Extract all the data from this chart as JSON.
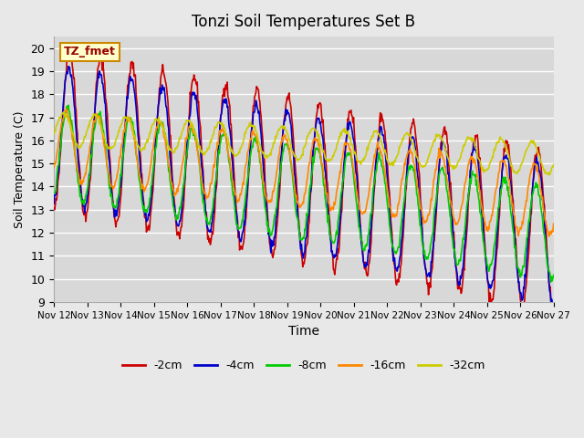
{
  "title": "Tonzi Soil Temperatures Set B",
  "xlabel": "Time",
  "ylabel": "Soil Temperature (C)",
  "ylim": [
    9.0,
    20.5
  ],
  "yticks": [
    9.0,
    10.0,
    11.0,
    12.0,
    13.0,
    14.0,
    15.0,
    16.0,
    17.0,
    18.0,
    19.0,
    20.0
  ],
  "xtick_labels": [
    "Nov 12",
    "Nov 13",
    "Nov 14",
    "Nov 15",
    "Nov 16",
    "Nov 17",
    "Nov 18",
    "Nov 19",
    "Nov 20",
    "Nov 21",
    "Nov 22",
    "Nov 23",
    "Nov 24",
    "Nov 25",
    "Nov 26",
    "Nov 27"
  ],
  "colors": {
    "-2cm": "#cc0000",
    "-4cm": "#0000cc",
    "-8cm": "#00cc00",
    "-16cm": "#ff8800",
    "-32cm": "#cccc00"
  },
  "legend_labels": [
    "-2cm",
    "-4cm",
    "-8cm",
    "-16cm",
    "-32cm"
  ],
  "annotation_text": "TZ_fmet",
  "background_color": "#e8e8e8",
  "plot_bg_color": "#d8d8d8",
  "grid_color": "#ffffff",
  "n_days": 16,
  "points_per_day": 48
}
